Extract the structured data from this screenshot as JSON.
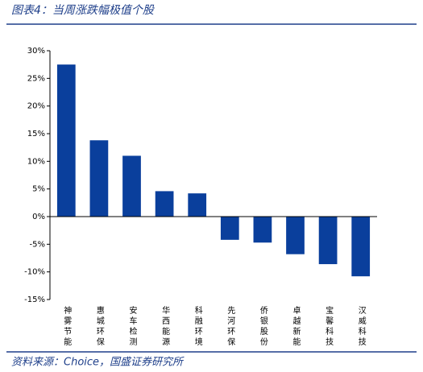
{
  "header": {
    "title": "图表4：当周涨跌幅极值个股"
  },
  "chart_data": {
    "type": "bar",
    "categories": [
      "神雾节能",
      "惠城环保",
      "安车检测",
      "华西能源",
      "科融环境",
      "先河环保",
      "侨银股份",
      "卓越新能",
      "宝馨科技",
      "汉威科技"
    ],
    "values": [
      27.5,
      13.8,
      11.0,
      4.6,
      4.2,
      -4.2,
      -4.7,
      -6.8,
      -8.6,
      -10.8
    ],
    "color": "#0a3f9c",
    "ylim": [
      -15,
      30
    ],
    "yticks": [
      {
        "value": -15,
        "label": "-15%"
      },
      {
        "value": -10,
        "label": "-10%"
      },
      {
        "value": -5,
        "label": "-5%"
      },
      {
        "value": 0,
        "label": "0%"
      },
      {
        "value": 5,
        "label": "5%"
      },
      {
        "value": 10,
        "label": "10%"
      },
      {
        "value": 15,
        "label": "15%"
      },
      {
        "value": 20,
        "label": "20%"
      },
      {
        "value": 25,
        "label": "25%"
      },
      {
        "value": 30,
        "label": "30%"
      }
    ],
    "grid": false
  },
  "footer": {
    "source": "资料来源：Choice，国盛证券研究所"
  }
}
